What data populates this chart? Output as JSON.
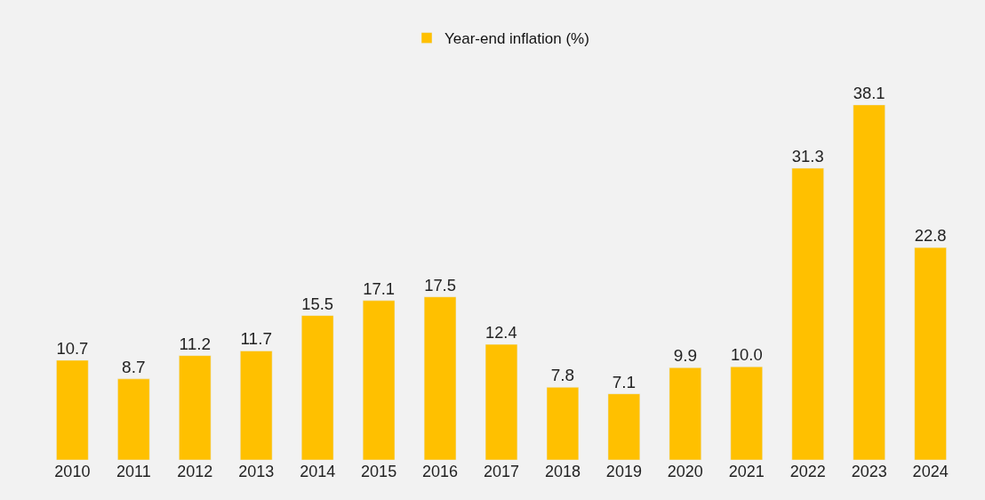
{
  "chart_data": {
    "type": "bar",
    "categories": [
      "2010",
      "2011",
      "2012",
      "2013",
      "2014",
      "2015",
      "2016",
      "2017",
      "2018",
      "2019",
      "2020",
      "2021",
      "2022",
      "2023",
      "2024"
    ],
    "series": [
      {
        "name": "Year-end inflation (%)",
        "color": "#ffc000",
        "values": [
          10.7,
          8.7,
          11.2,
          11.7,
          15.5,
          17.1,
          17.5,
          12.4,
          7.8,
          7.1,
          9.9,
          10.0,
          31.3,
          38.1,
          22.8
        ],
        "value_labels": [
          "10.7",
          "8.7",
          "11.2",
          "11.7",
          "15.5",
          "17.1",
          "17.5",
          "12.4",
          "7.8",
          "7.1",
          "9.9",
          "10.0",
          "31.3",
          "38.1",
          "22.8"
        ]
      }
    ],
    "legend": "top",
    "grid": false
  }
}
